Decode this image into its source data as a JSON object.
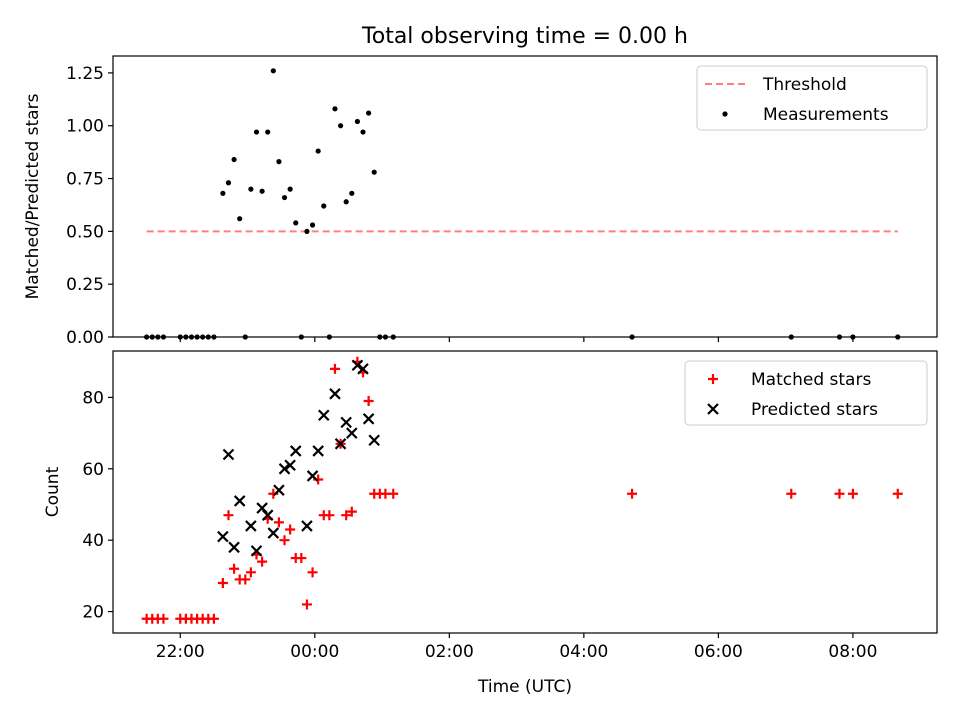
{
  "figure": {
    "title": "Total observing time = 0.00 h"
  },
  "chart_data": [
    {
      "type": "scatter",
      "title": "Total observing time = 0.00 h",
      "xlabel": "",
      "ylabel": "Matched/Predicted stars",
      "xlim": [
        "21:00",
        "09:15"
      ],
      "ylim": [
        0,
        1.33
      ],
      "yticks": [
        0.0,
        0.25,
        0.5,
        0.75,
        1.0,
        1.25
      ],
      "ytick_labels": [
        "0.00",
        "0.25",
        "0.50",
        "0.75",
        "1.00",
        "1.25"
      ],
      "xticks": [
        "22:00",
        "00:00",
        "02:00",
        "04:00",
        "06:00",
        "08:00"
      ],
      "legend_position": "top-right",
      "grid": false,
      "series": [
        {
          "name": "Threshold",
          "kind": "line",
          "style": "dashed",
          "color": "#ff7f7f",
          "points": [
            [
              "21:30",
              0.5
            ],
            [
              "08:40",
              0.5
            ]
          ]
        },
        {
          "name": "Measurements",
          "kind": "points",
          "marker": "dot",
          "color": "#000000",
          "points": [
            [
              "21:30",
              0
            ],
            [
              "21:35",
              0
            ],
            [
              "21:40",
              0
            ],
            [
              "21:45",
              0
            ],
            [
              "22:00",
              0
            ],
            [
              "22:05",
              0
            ],
            [
              "22:10",
              0
            ],
            [
              "22:15",
              0
            ],
            [
              "22:20",
              0
            ],
            [
              "22:25",
              0
            ],
            [
              "22:30",
              0
            ],
            [
              "22:38",
              0.68
            ],
            [
              "22:43",
              0.73
            ],
            [
              "22:48",
              0.84
            ],
            [
              "22:53",
              0.56
            ],
            [
              "22:58",
              0
            ],
            [
              "23:03",
              0.7
            ],
            [
              "23:08",
              0.97
            ],
            [
              "23:13",
              0.69
            ],
            [
              "23:18",
              0.97
            ],
            [
              "23:23",
              1.26
            ],
            [
              "23:28",
              0.83
            ],
            [
              "23:33",
              0.66
            ],
            [
              "23:38",
              0.7
            ],
            [
              "23:43",
              0.54
            ],
            [
              "23:48",
              0
            ],
            [
              "23:53",
              0.5
            ],
            [
              "23:58",
              0.53
            ],
            [
              "00:03",
              0.88
            ],
            [
              "00:08",
              0.62
            ],
            [
              "00:13",
              0
            ],
            [
              "00:18",
              1.08
            ],
            [
              "00:23",
              1.0
            ],
            [
              "00:28",
              0.64
            ],
            [
              "00:33",
              0.68
            ],
            [
              "00:38",
              1.02
            ],
            [
              "00:43",
              0.97
            ],
            [
              "00:48",
              1.06
            ],
            [
              "00:53",
              0.78
            ],
            [
              "00:58",
              0
            ],
            [
              "01:03",
              0
            ],
            [
              "01:10",
              0
            ],
            [
              "04:43",
              0
            ],
            [
              "07:05",
              0
            ],
            [
              "07:48",
              0
            ],
            [
              "08:00",
              0
            ],
            [
              "08:40",
              0
            ]
          ]
        }
      ]
    },
    {
      "type": "scatter",
      "title": "",
      "xlabel": "Time (UTC)",
      "ylabel": "Count",
      "xlim": [
        "21:00",
        "09:15"
      ],
      "ylim": [
        14,
        93
      ],
      "yticks": [
        20,
        40,
        60,
        80
      ],
      "ytick_labels": [
        "20",
        "40",
        "60",
        "80"
      ],
      "xticks": [
        "22:00",
        "00:00",
        "02:00",
        "04:00",
        "06:00",
        "08:00"
      ],
      "xtick_labels": [
        "22:00",
        "00:00",
        "02:00",
        "04:00",
        "06:00",
        "08:00"
      ],
      "legend_position": "top-right",
      "grid": false,
      "series": [
        {
          "name": "Matched stars",
          "kind": "points",
          "marker": "plus",
          "color": "#ff0000",
          "points": [
            [
              "21:30",
              18
            ],
            [
              "21:35",
              18
            ],
            [
              "21:40",
              18
            ],
            [
              "21:45",
              18
            ],
            [
              "22:00",
              18
            ],
            [
              "22:05",
              18
            ],
            [
              "22:10",
              18
            ],
            [
              "22:15",
              18
            ],
            [
              "22:20",
              18
            ],
            [
              "22:25",
              18
            ],
            [
              "22:30",
              18
            ],
            [
              "22:38",
              28
            ],
            [
              "22:43",
              47
            ],
            [
              "22:48",
              32
            ],
            [
              "22:53",
              29
            ],
            [
              "22:58",
              29
            ],
            [
              "23:03",
              31
            ],
            [
              "23:08",
              36
            ],
            [
              "23:13",
              34
            ],
            [
              "23:18",
              46
            ],
            [
              "23:23",
              53
            ],
            [
              "23:28",
              45
            ],
            [
              "23:33",
              40
            ],
            [
              "23:38",
              43
            ],
            [
              "23:43",
              35
            ],
            [
              "23:48",
              35
            ],
            [
              "23:53",
              22
            ],
            [
              "23:58",
              31
            ],
            [
              "00:03",
              57
            ],
            [
              "00:08",
              47
            ],
            [
              "00:13",
              47
            ],
            [
              "00:18",
              88
            ],
            [
              "00:23",
              67
            ],
            [
              "00:28",
              47
            ],
            [
              "00:33",
              48
            ],
            [
              "00:38",
              90
            ],
            [
              "00:43",
              87
            ],
            [
              "00:48",
              79
            ],
            [
              "00:53",
              53
            ],
            [
              "00:58",
              53
            ],
            [
              "01:03",
              53
            ],
            [
              "01:10",
              53
            ],
            [
              "04:43",
              53
            ],
            [
              "07:05",
              53
            ],
            [
              "07:48",
              53
            ],
            [
              "08:00",
              53
            ],
            [
              "08:40",
              53
            ]
          ]
        },
        {
          "name": "Predicted stars",
          "kind": "points",
          "marker": "x",
          "color": "#000000",
          "points": [
            [
              "22:38",
              41
            ],
            [
              "22:43",
              64
            ],
            [
              "22:48",
              38
            ],
            [
              "22:53",
              51
            ],
            [
              "23:03",
              44
            ],
            [
              "23:08",
              37
            ],
            [
              "23:13",
              49
            ],
            [
              "23:18",
              47
            ],
            [
              "23:23",
              42
            ],
            [
              "23:28",
              54
            ],
            [
              "23:33",
              60
            ],
            [
              "23:38",
              61
            ],
            [
              "23:43",
              65
            ],
            [
              "23:53",
              44
            ],
            [
              "23:58",
              58
            ],
            [
              "00:03",
              65
            ],
            [
              "00:08",
              75
            ],
            [
              "00:18",
              81
            ],
            [
              "00:23",
              67
            ],
            [
              "00:28",
              73
            ],
            [
              "00:33",
              70
            ],
            [
              "00:38",
              89
            ],
            [
              "00:43",
              88
            ],
            [
              "00:48",
              74
            ],
            [
              "00:53",
              68
            ]
          ]
        }
      ]
    }
  ]
}
